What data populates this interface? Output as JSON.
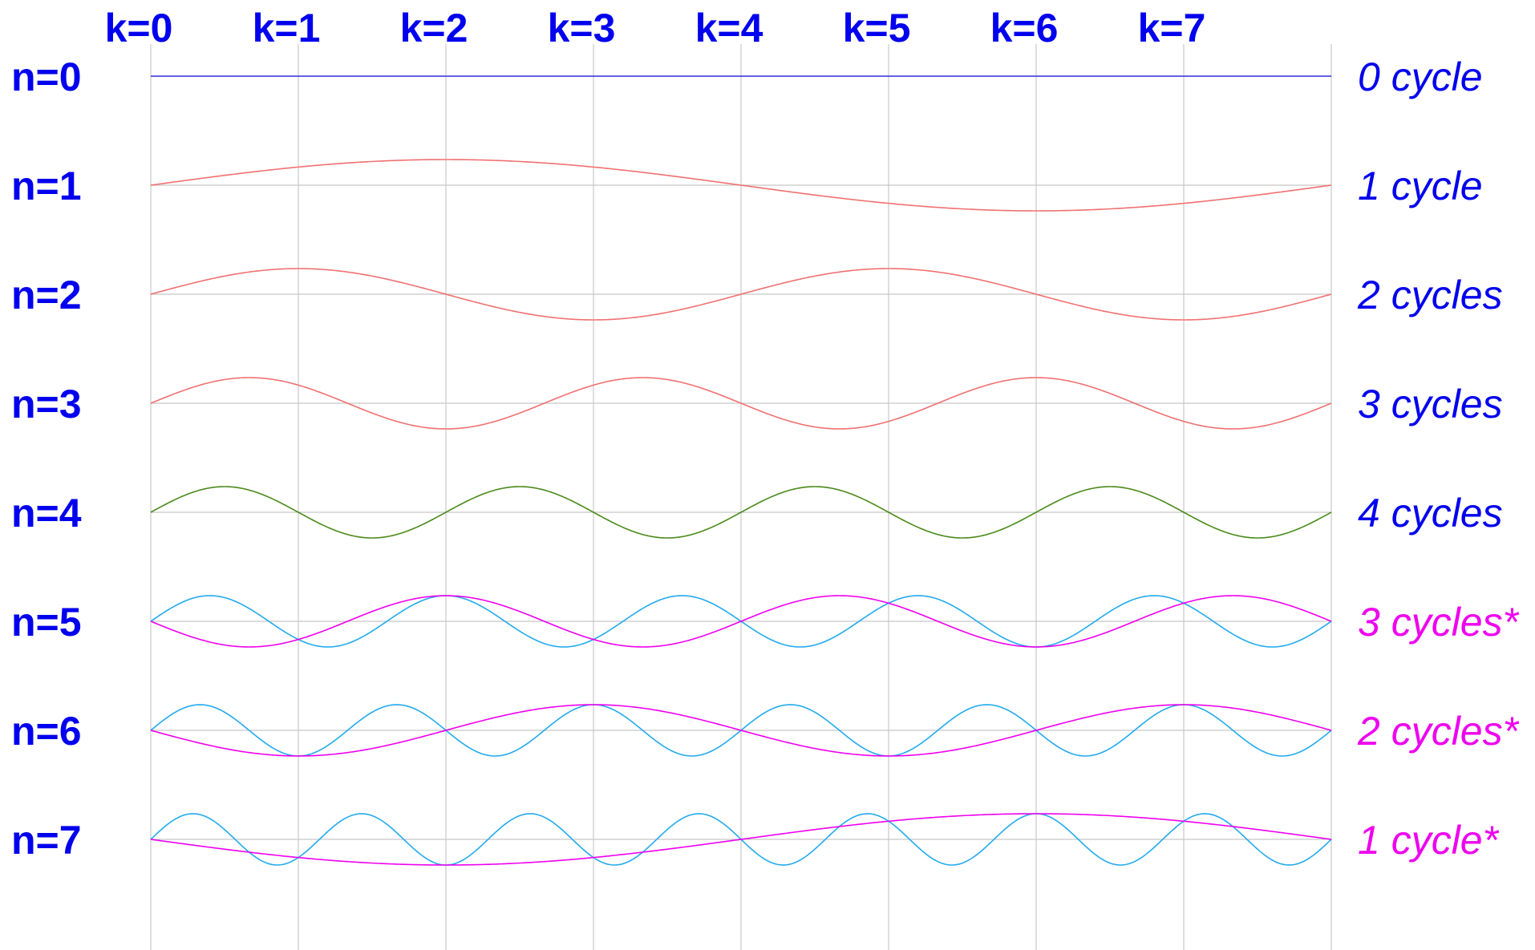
{
  "colors": {
    "label_blue": "#0000ee",
    "label_magenta": "#ee00ee",
    "n0_line": "#3333dd",
    "red_wave": "#f07070",
    "green_wave": "#4a8a1a",
    "cyan_wave": "#22aaee",
    "magenta_wave": "#ee00ee",
    "grid": "#c8c8c8"
  },
  "k_labels": [
    "k=0",
    "k=1",
    "k=2",
    "k=3",
    "k=4",
    "k=5",
    "k=6",
    "k=7"
  ],
  "rows": [
    {
      "n_label": "n=0",
      "cycle_label": "0 cycle",
      "label_color": "#0000ee",
      "curves": [
        {
          "cycles": 0,
          "color": "#3333dd"
        }
      ]
    },
    {
      "n_label": "n=1",
      "cycle_label": "1 cycle",
      "label_color": "#0000ee",
      "curves": [
        {
          "cycles": 1,
          "color": "#f07070"
        }
      ]
    },
    {
      "n_label": "n=2",
      "cycle_label": "2 cycles",
      "label_color": "#0000ee",
      "curves": [
        {
          "cycles": 2,
          "color": "#f07070"
        }
      ]
    },
    {
      "n_label": "n=3",
      "cycle_label": "3 cycles",
      "label_color": "#0000ee",
      "curves": [
        {
          "cycles": 3,
          "color": "#f07070"
        }
      ]
    },
    {
      "n_label": "n=4",
      "cycle_label": "4 cycles",
      "label_color": "#0000ee",
      "curves": [
        {
          "cycles": 4,
          "color": "#4a8a1a"
        }
      ]
    },
    {
      "n_label": "n=5",
      "cycle_label": "3 cycles*",
      "label_color": "#ee00ee",
      "curves": [
        {
          "cycles": 5,
          "color": "#22aaee"
        },
        {
          "cycles": -3,
          "color": "#ee00ee"
        }
      ]
    },
    {
      "n_label": "n=6",
      "cycle_label": "2 cycles*",
      "label_color": "#ee00ee",
      "curves": [
        {
          "cycles": 6,
          "color": "#22aaee"
        },
        {
          "cycles": -2,
          "color": "#ee00ee"
        }
      ]
    },
    {
      "n_label": "n=7",
      "cycle_label": "1 cycle*",
      "label_color": "#ee00ee",
      "curves": [
        {
          "cycles": 7,
          "color": "#22aaee"
        },
        {
          "cycles": -1,
          "color": "#ee00ee"
        }
      ]
    }
  ]
}
